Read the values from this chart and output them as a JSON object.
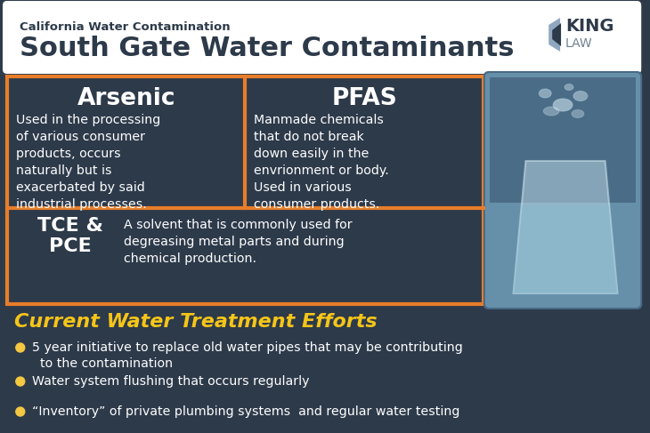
{
  "bg_color": "#2d3a4a",
  "header_bg": "#ffffff",
  "header_subtitle": "California Water Contamination",
  "header_title": "South Gate Water Contaminants",
  "orange_border": "#e87d2a",
  "cell_bg": "#2d3a4a",
  "arsenic_title": "Arsenic",
  "arsenic_body": "Used in the processing\nof various consumer\nproducts, occurs\nnaturally but is\nexacerbated by said\nindustrial processes.",
  "pfas_title": "PFAS",
  "pfas_body": "Manmade chemicals\nthat do not break\ndown easily in the\nenvrionment or body.\nUsed in various\nconsumer products.",
  "tce_title": "TCE &\nPCE",
  "tce_body": "A solvent that is commonly used for\ndegreasing metal parts and during\nchemical production.",
  "treatment_title": "Current Water Treatment Efforts",
  "bullet_color": "#f5c842",
  "bullet_points": [
    "5 year initiative to replace old water pipes that may be contributing\n  to the contamination",
    "Water system flushing that occurs regularly",
    "“Inventory” of private plumbing systems  and regular water testing"
  ],
  "white": "#ffffff",
  "yellow": "#f5c518",
  "king_law_text_color": "#2d3a4a",
  "king_arrow_blue": "#8fa8c0",
  "law_color": "#6e8090"
}
